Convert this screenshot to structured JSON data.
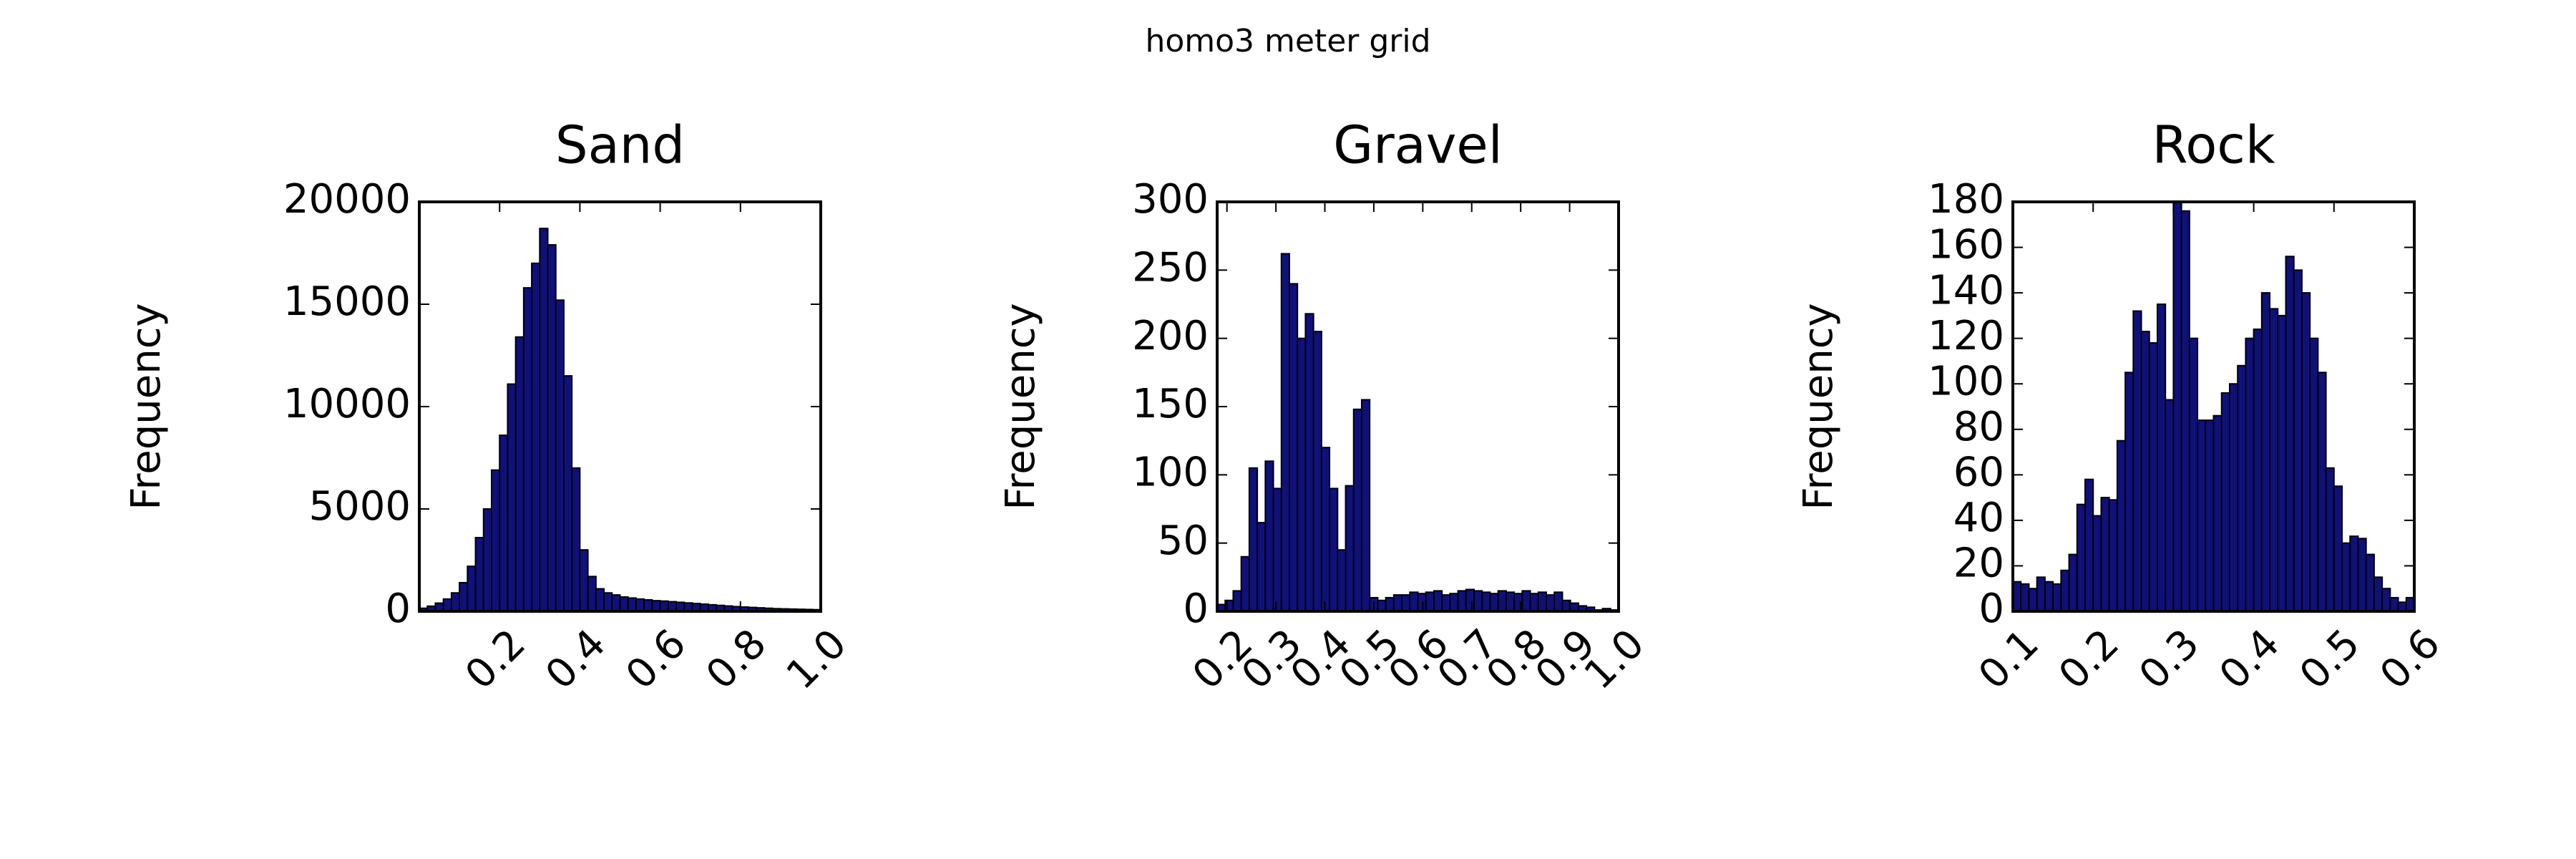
{
  "title": "homo3 meter grid",
  "chart_data": [
    {
      "type": "histogram",
      "title": "Sand",
      "ylabel": "Frequency",
      "color": "#10107a",
      "edgecolor": "#000000",
      "bins": [
        0.0,
        0.02,
        0.04,
        0.06,
        0.08,
        0.1,
        0.12,
        0.14,
        0.16,
        0.18,
        0.2,
        0.22,
        0.24,
        0.26,
        0.28,
        0.3,
        0.32,
        0.34,
        0.36,
        0.38,
        0.4,
        0.42,
        0.44,
        0.46,
        0.48,
        0.5,
        0.52,
        0.54,
        0.56,
        0.58,
        0.6,
        0.62,
        0.64,
        0.66,
        0.68,
        0.7,
        0.72,
        0.74,
        0.76,
        0.78,
        0.8,
        0.82,
        0.84,
        0.86,
        0.88,
        0.9,
        0.92,
        0.94,
        0.96,
        0.98,
        1.0
      ],
      "values": [
        150,
        250,
        400,
        600,
        900,
        1400,
        2200,
        3600,
        5000,
        6900,
        8600,
        11100,
        13400,
        15800,
        17000,
        18700,
        17900,
        15200,
        11500,
        7000,
        3000,
        1700,
        1100,
        900,
        800,
        700,
        650,
        600,
        560,
        520,
        500,
        470,
        440,
        410,
        380,
        350,
        320,
        290,
        260,
        230,
        210,
        190,
        170,
        150,
        130,
        120,
        110,
        100,
        90,
        80
      ],
      "xlim": [
        0.0,
        1.0
      ],
      "xticks": [
        0.2,
        0.4,
        0.6,
        0.8,
        {
          "value": 1,
          "label": "1.0"
        }
      ],
      "ylim": [
        0,
        20000
      ],
      "yticks": [
        0,
        5000,
        10000,
        15000,
        20000
      ]
    },
    {
      "type": "histogram",
      "title": "Gravel",
      "ylabel": "Frequency",
      "color": "#10107a",
      "edgecolor": "#000000",
      "bins": [
        0.18,
        0.1964,
        0.2128,
        0.2292,
        0.2456,
        0.262,
        0.2784,
        0.2948,
        0.3112,
        0.3276,
        0.344,
        0.3604,
        0.3768,
        0.3932,
        0.4096,
        0.426,
        0.4424,
        0.4588,
        0.4752,
        0.4916,
        0.508,
        0.5244,
        0.5408,
        0.5572,
        0.5736,
        0.59,
        0.6064,
        0.6228,
        0.6392,
        0.6556,
        0.672,
        0.6884,
        0.7048,
        0.7212,
        0.7376,
        0.754,
        0.7704,
        0.7868,
        0.8032,
        0.8196,
        0.836,
        0.8524,
        0.8688,
        0.8852,
        0.9016,
        0.918,
        0.9344,
        0.9508,
        0.9672,
        0.9836,
        1.0
      ],
      "values": [
        5,
        8,
        15,
        40,
        105,
        65,
        110,
        90,
        262,
        240,
        200,
        218,
        205,
        120,
        90,
        45,
        92,
        148,
        155,
        10,
        8,
        10,
        12,
        12,
        14,
        13,
        14,
        15,
        12,
        13,
        15,
        16,
        15,
        14,
        13,
        15,
        14,
        13,
        15,
        13,
        14,
        12,
        14,
        8,
        6,
        4,
        3,
        1,
        2,
        1
      ],
      "xlim": [
        0.18,
        1.0
      ],
      "xticks": [
        0.2,
        0.3,
        0.4,
        0.5,
        0.6,
        0.7,
        0.8,
        0.9,
        {
          "value": 1,
          "label": "1.0"
        }
      ],
      "ylim": [
        0,
        300
      ],
      "yticks": [
        0,
        50,
        100,
        150,
        200,
        250,
        300
      ]
    },
    {
      "type": "histogram",
      "title": "Rock",
      "ylabel": "Frequency",
      "color": "#10107a",
      "edgecolor": "#000000",
      "bins": [
        0.1,
        0.11,
        0.12,
        0.13,
        0.14,
        0.15,
        0.16,
        0.17,
        0.18,
        0.19,
        0.2,
        0.21,
        0.22,
        0.23,
        0.24,
        0.25,
        0.26,
        0.27,
        0.28,
        0.29,
        0.3,
        0.31,
        0.32,
        0.33,
        0.34,
        0.35,
        0.36,
        0.37,
        0.38,
        0.39,
        0.4,
        0.41,
        0.42,
        0.43,
        0.44,
        0.45,
        0.46,
        0.47,
        0.48,
        0.49,
        0.5,
        0.51,
        0.52,
        0.53,
        0.54,
        0.55,
        0.56,
        0.57,
        0.58,
        0.59,
        0.6
      ],
      "values": [
        13,
        12,
        10,
        15,
        13,
        12,
        18,
        25,
        47,
        58,
        42,
        50,
        49,
        75,
        105,
        132,
        123,
        118,
        135,
        93,
        180,
        176,
        120,
        84,
        84,
        86,
        96,
        100,
        108,
        120,
        124,
        140,
        133,
        130,
        156,
        150,
        140,
        120,
        105,
        63,
        55,
        30,
        33,
        32,
        25,
        15,
        10,
        6,
        4,
        6
      ],
      "xlim": [
        0.1,
        0.6
      ],
      "xticks": [
        0.1,
        0.2,
        0.3,
        0.4,
        0.5,
        0.6
      ],
      "ylim": [
        0,
        180
      ],
      "yticks": [
        0,
        20,
        40,
        60,
        80,
        100,
        120,
        140,
        160,
        180
      ]
    }
  ]
}
